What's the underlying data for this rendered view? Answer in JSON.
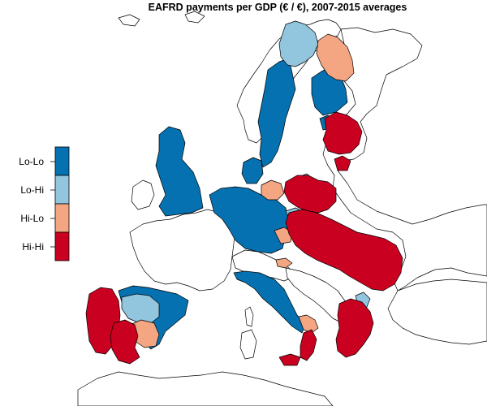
{
  "map": {
    "title": "EAFRD payments per GDP (€ / €), 2007-2015 averages"
  },
  "legend": {
    "items": [
      {
        "label": "Lo-Lo",
        "color": "#0571b0"
      },
      {
        "label": "Lo-Hi",
        "color": "#92c5de"
      },
      {
        "label": "Hi-Lo",
        "color": "#f4a582"
      },
      {
        "label": "Hi-Hi",
        "color": "#ca0020"
      }
    ]
  },
  "palette": {
    "lolo": "#0571b0",
    "lohi": "#92c5de",
    "hilo": "#f4a582",
    "hihi": "#ca0020",
    "other": "#ffffff"
  }
}
